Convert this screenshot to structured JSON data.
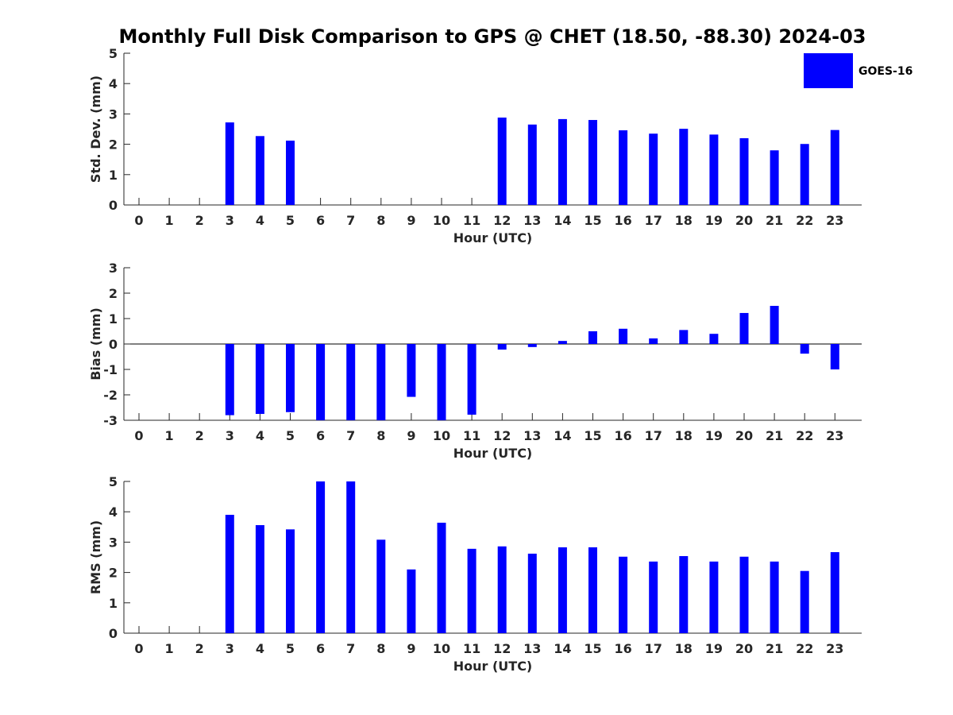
{
  "title": "Monthly Full Disk Comparison to GPS @ CHET (18.50, -88.30) 2024-03",
  "bar_color": "#0000ff",
  "legend": {
    "label": "GOES-16",
    "placement": "top-right"
  },
  "chart_data": [
    {
      "type": "bar",
      "xlabel": "Hour (UTC)",
      "ylabel": "Std. Dev. (mm)",
      "ylim": [
        0,
        5
      ],
      "yticks": [
        0,
        1,
        2,
        3,
        4,
        5
      ],
      "categories": [
        "0",
        "1",
        "2",
        "3",
        "4",
        "5",
        "6",
        "7",
        "8",
        "9",
        "10",
        "11",
        "12",
        "13",
        "14",
        "15",
        "16",
        "17",
        "18",
        "19",
        "20",
        "21",
        "22",
        "23"
      ],
      "series": [
        {
          "name": "GOES-16",
          "values": [
            null,
            null,
            null,
            2.72,
            2.27,
            2.12,
            null,
            null,
            null,
            null,
            null,
            null,
            2.88,
            2.65,
            2.83,
            2.8,
            2.46,
            2.35,
            2.51,
            2.32,
            2.2,
            1.8,
            2.01,
            2.47
          ]
        }
      ]
    },
    {
      "type": "bar",
      "xlabel": "Hour (UTC)",
      "ylabel": "Bias (mm)",
      "ylim": [
        -3,
        3
      ],
      "yticks": [
        -3,
        -2,
        -1,
        0,
        1,
        2,
        3
      ],
      "categories": [
        "0",
        "1",
        "2",
        "3",
        "4",
        "5",
        "6",
        "7",
        "8",
        "9",
        "10",
        "11",
        "12",
        "13",
        "14",
        "15",
        "16",
        "17",
        "18",
        "19",
        "20",
        "21",
        "22",
        "23"
      ],
      "series": [
        {
          "name": "GOES-16",
          "values": [
            null,
            null,
            null,
            -2.8,
            -2.75,
            -2.68,
            -3.0,
            -3.0,
            -3.0,
            -2.08,
            -3.0,
            -2.78,
            -0.22,
            -0.12,
            0.12,
            0.5,
            0.6,
            0.22,
            0.55,
            0.4,
            1.22,
            1.5,
            -0.38,
            -1.0
          ]
        }
      ]
    },
    {
      "type": "bar",
      "xlabel": "Hour (UTC)",
      "ylabel": "RMS (mm)",
      "ylim": [
        0,
        5
      ],
      "yticks": [
        0,
        1,
        2,
        3,
        4,
        5
      ],
      "categories": [
        "0",
        "1",
        "2",
        "3",
        "4",
        "5",
        "6",
        "7",
        "8",
        "9",
        "10",
        "11",
        "12",
        "13",
        "14",
        "15",
        "16",
        "17",
        "18",
        "19",
        "20",
        "21",
        "22",
        "23"
      ],
      "series": [
        {
          "name": "GOES-16",
          "values": [
            null,
            null,
            null,
            3.9,
            3.56,
            3.42,
            5.0,
            5.0,
            3.08,
            2.1,
            3.64,
            2.78,
            2.86,
            2.62,
            2.83,
            2.83,
            2.52,
            2.36,
            2.54,
            2.36,
            2.52,
            2.36,
            2.05,
            2.67
          ]
        }
      ]
    }
  ]
}
